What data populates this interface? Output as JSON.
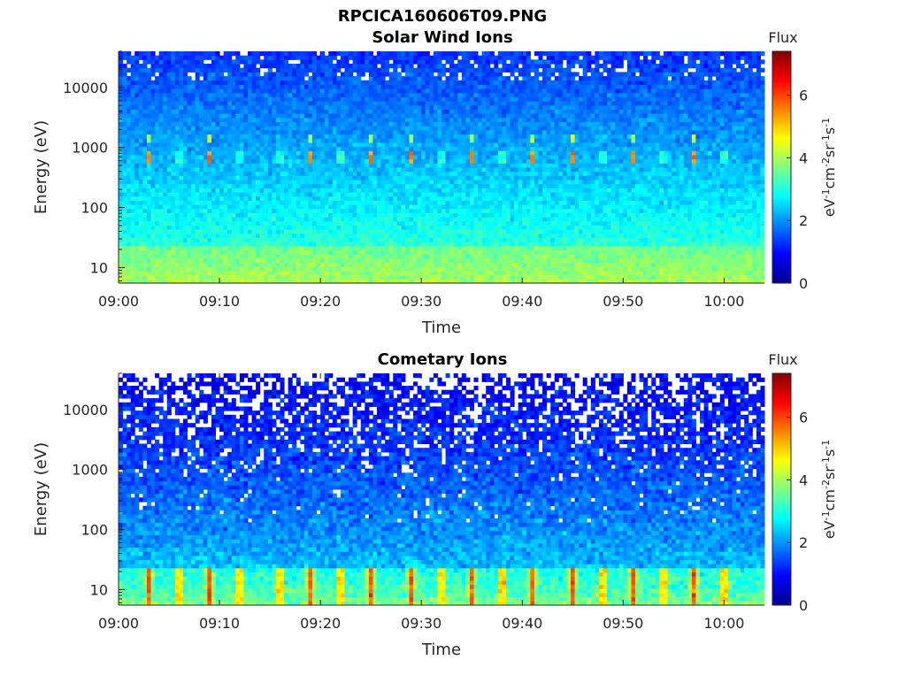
{
  "figure_title": "RPCICA160606T09.PNG",
  "colormap": [
    "#00008f",
    "#0000ff",
    "#0080ff",
    "#00ffff",
    "#80ff80",
    "#ffff00",
    "#ff8000",
    "#ff0000",
    "#800000"
  ],
  "chart_data": [
    {
      "type": "heatmap",
      "title": "Solar Wind Ions",
      "xlabel": "Time",
      "ylabel": "Energy (eV)",
      "yscale": "log",
      "ylim": [
        5.5,
        40000
      ],
      "xlim": [
        "09:00",
        "10:04"
      ],
      "x_ticks": [
        "09:00",
        "09:10",
        "09:20",
        "09:30",
        "09:40",
        "09:50",
        "10:00"
      ],
      "y_ticks": [
        "10",
        "100",
        "1000",
        "10000"
      ],
      "colorbar": {
        "label_title": "Flux",
        "label": "eV-1cm-2sr-1s-1",
        "range": [
          0,
          7.4
        ],
        "ticks": [
          "0",
          "2",
          "4",
          "6"
        ]
      },
      "features": {
        "peak_energy_eV": [
          700,
          1500
        ],
        "peak_flux": 5.5,
        "peak_times": [
          "09:03",
          "09:06",
          "09:09",
          "09:12",
          "09:16",
          "09:19",
          "09:22",
          "09:25",
          "09:29",
          "09:32",
          "09:35",
          "09:38",
          "09:41",
          "09:45",
          "09:48",
          "09:51",
          "09:54",
          "09:57",
          "10:00"
        ],
        "background_flux_low_energy": 3.5,
        "background_flux_high_energy": 1.3
      }
    },
    {
      "type": "heatmap",
      "title": "Cometary Ions",
      "xlabel": "Time",
      "ylabel": "Energy (eV)",
      "yscale": "log",
      "ylim": [
        5.5,
        40000
      ],
      "xlim": [
        "09:00",
        "10:04"
      ],
      "x_ticks": [
        "09:00",
        "09:10",
        "09:20",
        "09:30",
        "09:40",
        "09:50",
        "10:00"
      ],
      "y_ticks": [
        "10",
        "100",
        "1000",
        "10000"
      ],
      "colorbar": {
        "label_title": "Flux",
        "label": "eV-1cm-2sr-1s-1",
        "range": [
          0,
          7.4
        ],
        "ticks": [
          "0",
          "2",
          "4",
          "6"
        ]
      },
      "features": {
        "low_energy_peak_flux": 5.8,
        "peak_times": [
          "09:03",
          "09:06",
          "09:09",
          "09:12",
          "09:16",
          "09:19",
          "09:22",
          "09:25",
          "09:29",
          "09:32",
          "09:35",
          "09:38",
          "09:41",
          "09:45",
          "09:48",
          "09:51",
          "09:54",
          "09:57",
          "10:00"
        ],
        "background_flux_low_energy": 3.2,
        "background_flux_high_energy": 0.9
      }
    }
  ]
}
